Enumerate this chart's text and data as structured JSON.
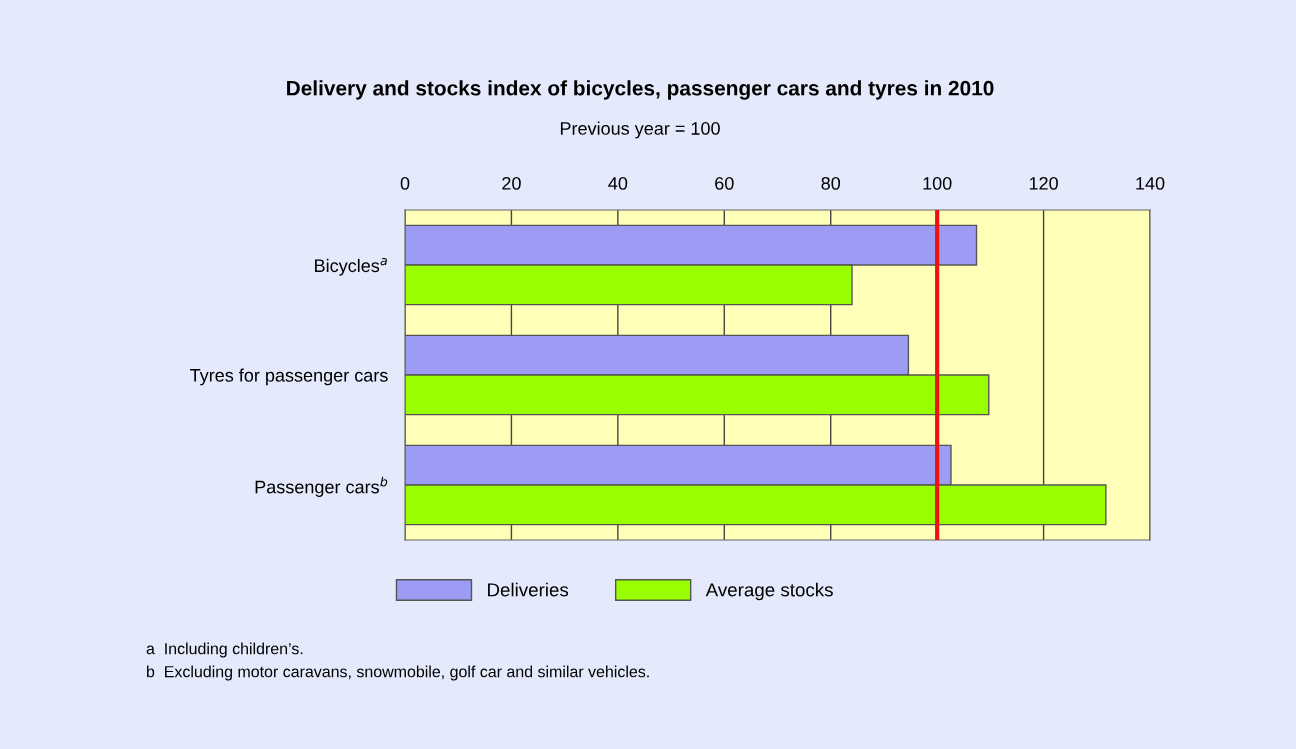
{
  "chart_data": {
    "type": "bar",
    "orientation": "horizontal",
    "title": "Delivery and stocks index of bicycles, passenger cars and tyres in 2010",
    "subtitle": "Previous year = 100",
    "categories": [
      "Bicycles$^{a}$",
      "Tyres for passenger cars",
      "Passenger cars$^{b}$"
    ],
    "series": [
      {
        "name": "Deliveries",
        "color": "#9c9cf4",
        "values": [
          107.4,
          94.6,
          102.6
        ]
      },
      {
        "name": "Average stocks",
        "color": "#99ff00",
        "values": [
          84.0,
          109.7,
          131.7
        ]
      }
    ],
    "xlim": [
      0,
      140
    ],
    "xticks": [
      0,
      20,
      40,
      60,
      80,
      100,
      120,
      140
    ],
    "grid": "x",
    "legend": "bottom",
    "ref_lines": [
      {
        "axis": "x",
        "value": 100,
        "color": "#ee1111"
      }
    ],
    "annotations": [
      "a  Including children’s.",
      "b  Excluding motor caravans, snowmobile, golf car and similar vehicles."
    ]
  }
}
